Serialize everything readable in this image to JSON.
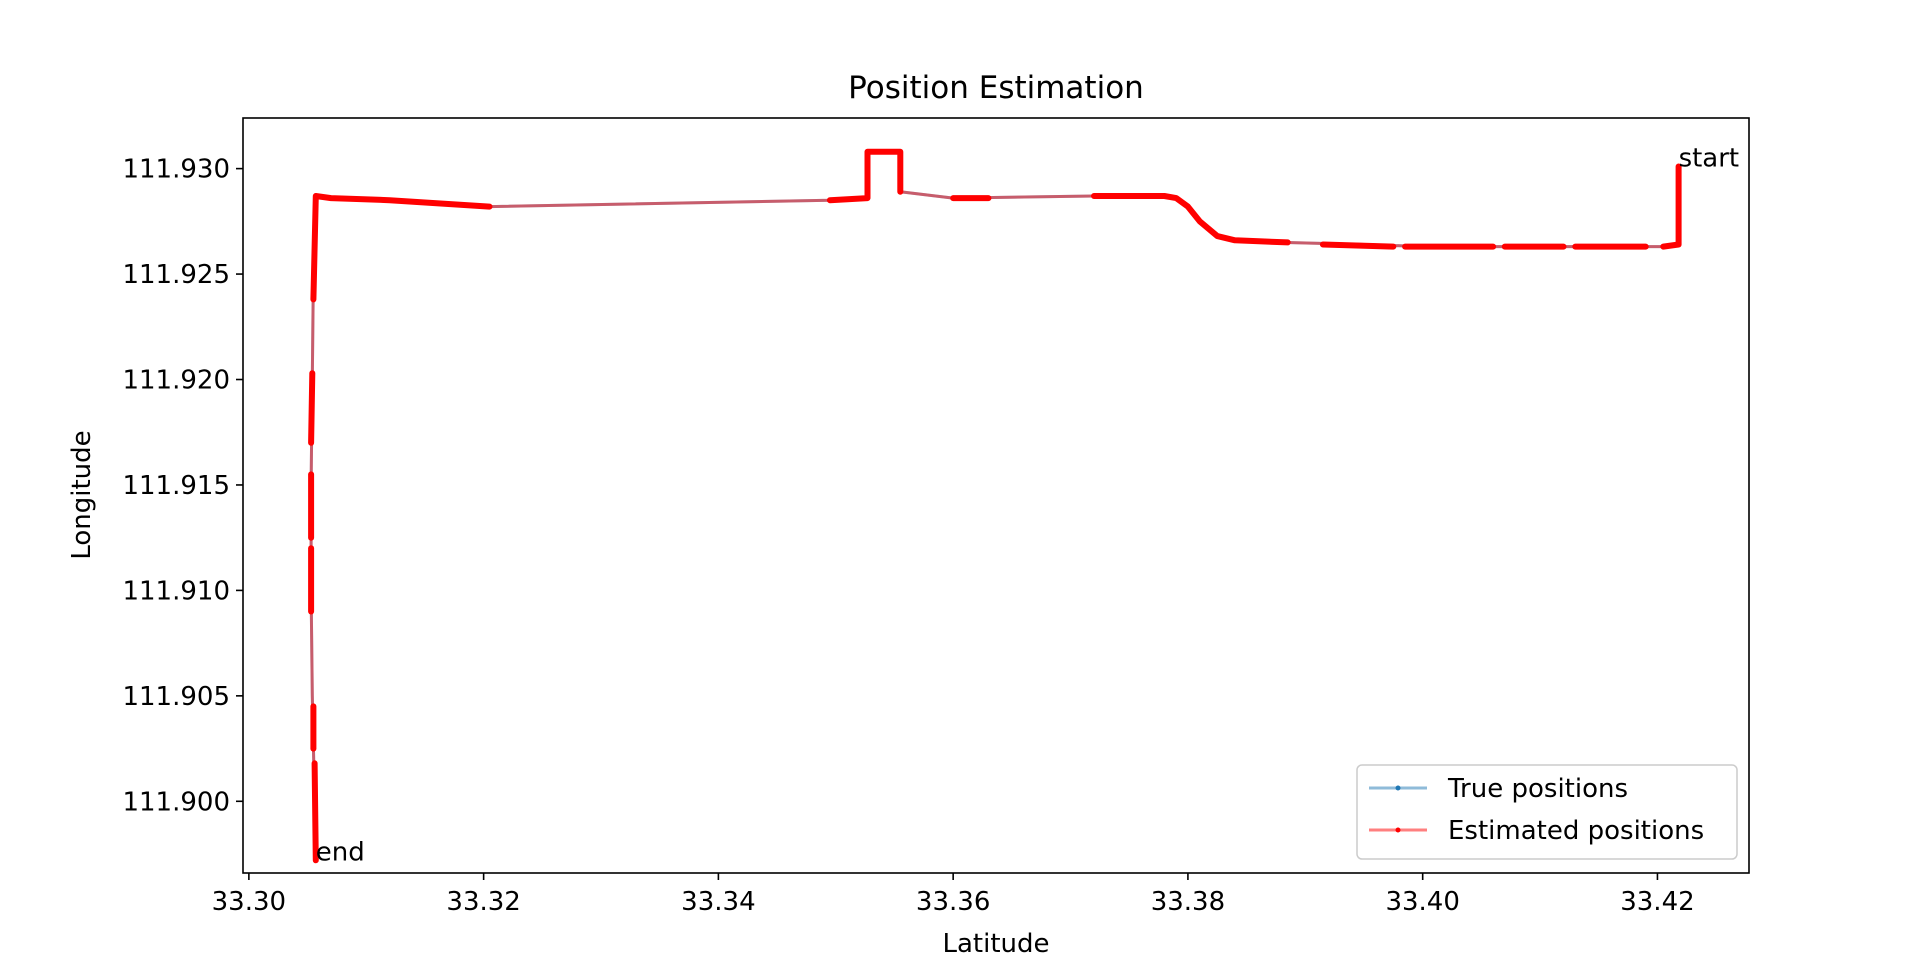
{
  "chart_data": {
    "type": "line",
    "title": "Position Estimation",
    "xlabel": "Latitude",
    "ylabel": "Longitude",
    "xlim": [
      33.2995,
      33.4278
    ],
    "ylim": [
      111.8966,
      111.9324
    ],
    "xticks": [
      "33.30",
      "33.32",
      "33.34",
      "33.36",
      "33.38",
      "33.40",
      "33.42"
    ],
    "yticks": [
      "111.900",
      "111.905",
      "111.910",
      "111.915",
      "111.920",
      "111.925",
      "111.930"
    ],
    "grid": false,
    "legend_position": "bottom-right",
    "series": [
      {
        "name": "True positions",
        "color": "#1f77b4",
        "points": [
          [
            33.4218,
            111.9301
          ],
          [
            33.4218,
            111.9264
          ],
          [
            33.421,
            111.9263
          ],
          [
            33.415,
            111.9263
          ],
          [
            33.408,
            111.9263
          ],
          [
            33.4,
            111.9263
          ],
          [
            33.395,
            111.9264
          ],
          [
            33.388,
            111.9265
          ],
          [
            33.384,
            111.9266
          ],
          [
            33.3825,
            111.9268
          ],
          [
            33.381,
            111.9275
          ],
          [
            33.38,
            111.9282
          ],
          [
            33.379,
            111.9286
          ],
          [
            33.378,
            111.9287
          ],
          [
            33.372,
            111.9287
          ],
          [
            33.36,
            111.9286
          ],
          [
            33.3555,
            111.9289
          ],
          [
            33.3555,
            111.9308
          ],
          [
            33.3527,
            111.9308
          ],
          [
            33.3527,
            111.9286
          ],
          [
            33.3495,
            111.9285
          ],
          [
            33.3205,
            111.9282
          ],
          [
            33.312,
            111.9285
          ],
          [
            33.307,
            111.9286
          ],
          [
            33.3057,
            111.9287
          ],
          [
            33.3055,
            111.925
          ],
          [
            33.3054,
            111.92
          ],
          [
            33.3053,
            111.915
          ],
          [
            33.3053,
            111.91
          ],
          [
            33.3054,
            111.905
          ],
          [
            33.3056,
            111.9
          ],
          [
            33.3057,
            111.8972
          ]
        ]
      },
      {
        "name": "Estimated positions",
        "color": "#ff0000",
        "points": [
          [
            33.4218,
            111.9301
          ],
          [
            33.4218,
            111.9264
          ],
          [
            33.421,
            111.9263
          ],
          [
            33.415,
            111.9263
          ],
          [
            33.408,
            111.9263
          ],
          [
            33.4,
            111.9263
          ],
          [
            33.395,
            111.9264
          ],
          [
            33.388,
            111.9265
          ],
          [
            33.384,
            111.9266
          ],
          [
            33.3825,
            111.9268
          ],
          [
            33.381,
            111.9275
          ],
          [
            33.38,
            111.9282
          ],
          [
            33.379,
            111.9286
          ],
          [
            33.378,
            111.9287
          ],
          [
            33.372,
            111.9287
          ],
          [
            33.36,
            111.9286
          ],
          [
            33.3555,
            111.9289
          ],
          [
            33.3555,
            111.9308
          ],
          [
            33.3527,
            111.9308
          ],
          [
            33.3527,
            111.9286
          ],
          [
            33.3495,
            111.9285
          ],
          [
            33.3205,
            111.9282
          ],
          [
            33.312,
            111.9285
          ],
          [
            33.307,
            111.9286
          ],
          [
            33.3057,
            111.9287
          ],
          [
            33.3055,
            111.925
          ],
          [
            33.3054,
            111.92
          ],
          [
            33.3053,
            111.915
          ],
          [
            33.3053,
            111.91
          ],
          [
            33.3054,
            111.905
          ],
          [
            33.3056,
            111.9
          ],
          [
            33.3057,
            111.8972
          ]
        ],
        "dense_segments": [
          [
            [
              33.4218,
              111.9301
            ],
            [
              33.4218,
              111.9264
            ],
            [
              33.4205,
              111.9263
            ]
          ],
          [
            [
              33.419,
              111.9263
            ],
            [
              33.413,
              111.9263
            ]
          ],
          [
            [
              33.412,
              111.9263
            ],
            [
              33.407,
              111.9263
            ]
          ],
          [
            [
              33.406,
              111.9263
            ],
            [
              33.3985,
              111.9263
            ]
          ],
          [
            [
              33.3975,
              111.9263
            ],
            [
              33.3915,
              111.9264
            ]
          ],
          [
            [
              33.3885,
              111.9265
            ],
            [
              33.384,
              111.9266
            ],
            [
              33.3825,
              111.9268
            ],
            [
              33.381,
              111.9275
            ],
            [
              33.38,
              111.9282
            ],
            [
              33.379,
              111.9286
            ],
            [
              33.378,
              111.9287
            ],
            [
              33.372,
              111.9287
            ]
          ],
          [
            [
              33.363,
              111.9286
            ],
            [
              33.36,
              111.9286
            ]
          ],
          [
            [
              33.3555,
              111.9289
            ],
            [
              33.3555,
              111.9308
            ],
            [
              33.3527,
              111.9308
            ],
            [
              33.3527,
              111.9286
            ],
            [
              33.3495,
              111.9285
            ]
          ],
          [
            [
              33.3205,
              111.9282
            ],
            [
              33.312,
              111.9285
            ],
            [
              33.307,
              111.9286
            ],
            [
              33.3057,
              111.9287
            ],
            [
              33.3055,
              111.9238
            ]
          ],
          [
            [
              33.3054,
              111.9203
            ],
            [
              33.3053,
              111.917
            ]
          ],
          [
            [
              33.3053,
              111.9155
            ],
            [
              33.3053,
              111.9125
            ]
          ],
          [
            [
              33.3053,
              111.912
            ],
            [
              33.3053,
              111.909
            ]
          ],
          [
            [
              33.3055,
              111.9045
            ],
            [
              33.3055,
              111.9025
            ]
          ],
          [
            [
              33.3056,
              111.9018
            ],
            [
              33.3057,
              111.8972
            ]
          ]
        ]
      }
    ],
    "annotations": [
      {
        "text": "start",
        "x": 33.4218,
        "y": 111.9301
      },
      {
        "text": "end",
        "x": 33.3057,
        "y": 111.8972
      }
    ]
  }
}
